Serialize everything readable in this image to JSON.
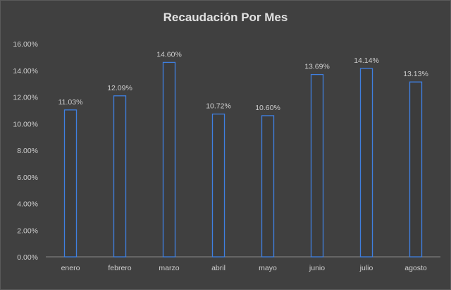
{
  "chart_data": {
    "type": "bar",
    "title": "Recaudación Por Mes",
    "categories": [
      "enero",
      "febrero",
      "marzo",
      "abril",
      "mayo",
      "junio",
      "julio",
      "agosto"
    ],
    "values": [
      11.03,
      12.09,
      14.6,
      10.72,
      10.6,
      13.69,
      14.14,
      13.13
    ],
    "data_labels": [
      "11.03%",
      "12.09%",
      "14.60%",
      "10.72%",
      "10.60%",
      "13.69%",
      "14.14%",
      "13.13%"
    ],
    "ylim": [
      0,
      16
    ],
    "yticks": [
      "0.00%",
      "2.00%",
      "4.00%",
      "6.00%",
      "8.00%",
      "10.00%",
      "12.00%",
      "14.00%",
      "16.00%"
    ],
    "grid": false,
    "colors": {
      "background": "#404040",
      "bar_outline": "#3f7fe0",
      "text": "#cfcfcf"
    }
  }
}
